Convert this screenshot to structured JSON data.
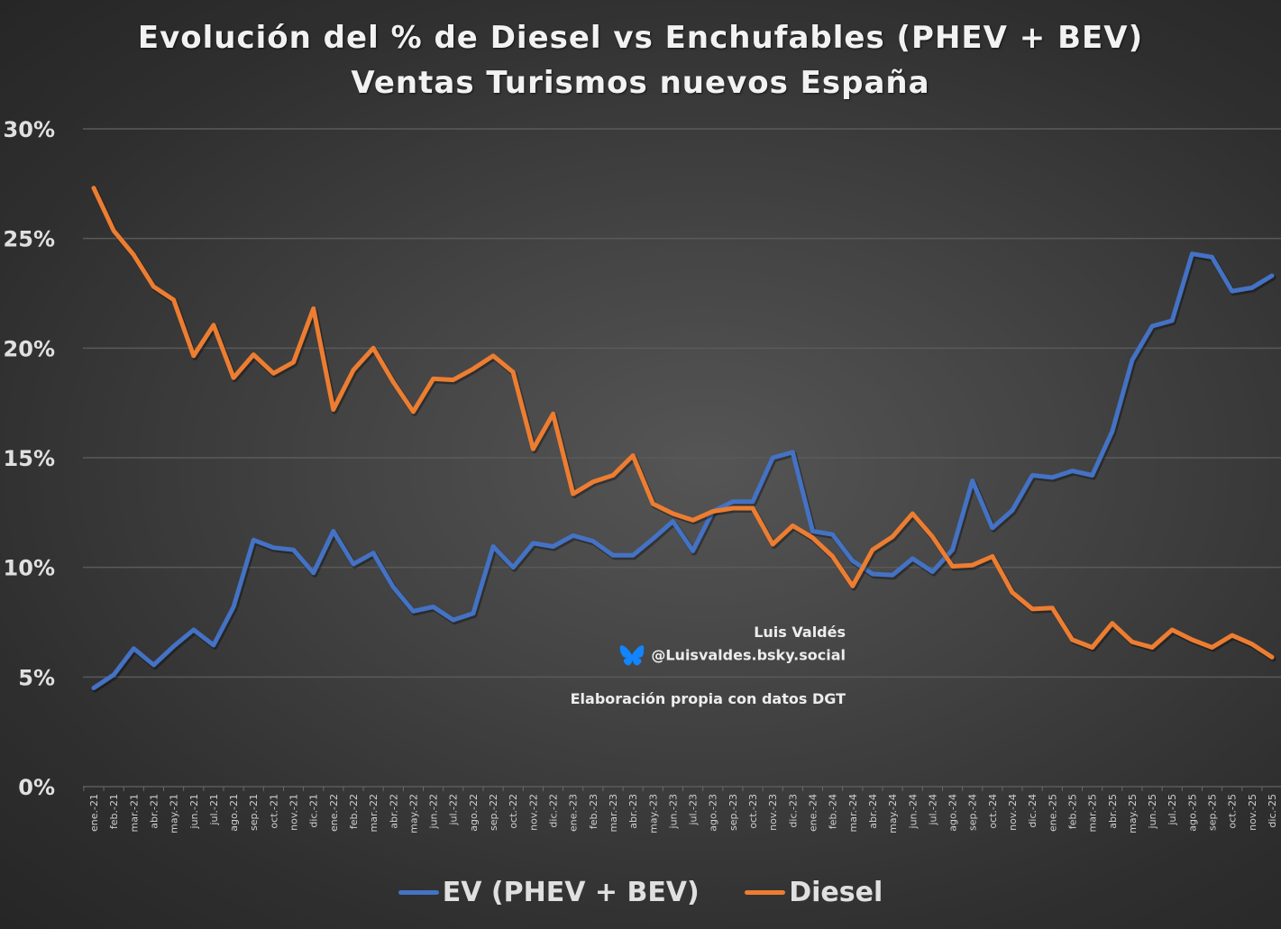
{
  "title_line1": "Evolución del % de Diesel vs Enchufables (PHEV + BEV)",
  "title_line2": "Ventas Turismos nuevos España",
  "watermark": {
    "author": "Luis Valdés",
    "handle": "@Luisvaldes.bsky.social",
    "source": "Elaboración propia con datos DGT",
    "icon": "butterfly-icon"
  },
  "colors": {
    "ev": "#4472c4",
    "diesel": "#ed7d31",
    "grid": "#5a5a5a",
    "bsky": "#1185fe"
  },
  "legend": {
    "ev_label": "EV (PHEV + BEV)",
    "diesel_label": "Diesel"
  },
  "chart_data": {
    "type": "line",
    "title": "Evolución del % de Diesel vs Enchufables (PHEV + BEV) — Ventas Turismos nuevos España",
    "xlabel": "",
    "ylabel": "",
    "ylim": [
      0,
      30
    ],
    "yticks": [
      0,
      5,
      10,
      15,
      20,
      25,
      30
    ],
    "ytick_labels": [
      "0%",
      "5%",
      "10%",
      "15%",
      "20%",
      "25%",
      "30%"
    ],
    "grid": true,
    "legend_position": "bottom",
    "categories": [
      "ene.-21",
      "feb.-21",
      "mar.-21",
      "abr.-21",
      "may.-21",
      "jun.-21",
      "jul.-21",
      "ago.-21",
      "sep.-21",
      "oct.-21",
      "nov.-21",
      "dic.-21",
      "ene.-22",
      "feb.-22",
      "mar.-22",
      "abr.-22",
      "may.-22",
      "jun.-22",
      "jul.-22",
      "ago.-22",
      "sep.-22",
      "oct.-22",
      "nov.-22",
      "dic.-22",
      "ene.-23",
      "feb.-23",
      "mar.-23",
      "abr.-23",
      "may.-23",
      "jun.-23",
      "jul.-23",
      "ago.-23",
      "sep.-23",
      "oct.-23",
      "nov.-23",
      "dic.-23",
      "ene.-24",
      "feb.-24",
      "mar.-24",
      "abr.-24",
      "may.-24",
      "jun.-24",
      "jul.-24",
      "ago.-24",
      "sep.-24",
      "oct.-24",
      "nov.-24",
      "dic.-24",
      "ene.-25",
      "feb.-25",
      "mar.-25",
      "abr.-25",
      "may.-25",
      "jun.-25",
      "jul.-25",
      "ago.-25",
      "sep.-25",
      "oct.-25",
      "nov.-25",
      "dic.-25"
    ],
    "series": [
      {
        "name": "EV (PHEV + BEV)",
        "key": "ev",
        "values": [
          4.5,
          5.1,
          6.3,
          5.55,
          6.4,
          7.15,
          6.45,
          8.2,
          11.25,
          10.9,
          10.8,
          9.75,
          11.65,
          10.15,
          10.65,
          9.1,
          8.0,
          8.2,
          7.6,
          7.9,
          10.95,
          10.0,
          11.1,
          10.95,
          11.45,
          11.2,
          10.55,
          10.55,
          11.3,
          12.1,
          10.75,
          12.55,
          13.0,
          13.0,
          15.0,
          15.25,
          11.65,
          11.5,
          10.3,
          9.7,
          9.65,
          10.4,
          9.8,
          10.8,
          13.95,
          11.8,
          12.6,
          14.2,
          14.1,
          14.4,
          14.2,
          16.2,
          19.45,
          21.0,
          21.25,
          24.3,
          24.15,
          22.6,
          22.75,
          23.3
        ]
      },
      {
        "name": "Diesel",
        "key": "diesel",
        "values": [
          27.3,
          25.35,
          24.25,
          22.8,
          22.2,
          19.65,
          21.05,
          18.65,
          19.7,
          18.85,
          19.35,
          21.8,
          17.2,
          19.0,
          20.0,
          18.45,
          17.1,
          18.6,
          18.55,
          19.05,
          19.65,
          18.9,
          15.4,
          17.0,
          13.35,
          13.9,
          14.2,
          15.1,
          12.9,
          12.45,
          12.15,
          12.55,
          12.7,
          12.7,
          11.05,
          11.9,
          11.35,
          10.5,
          9.15,
          10.8,
          11.4,
          12.45,
          11.4,
          10.05,
          10.1,
          10.5,
          8.85,
          8.1,
          8.15,
          6.7,
          6.35,
          7.45,
          6.6,
          6.35,
          7.15,
          6.7,
          6.35,
          6.9,
          6.5,
          5.9
        ]
      }
    ]
  }
}
